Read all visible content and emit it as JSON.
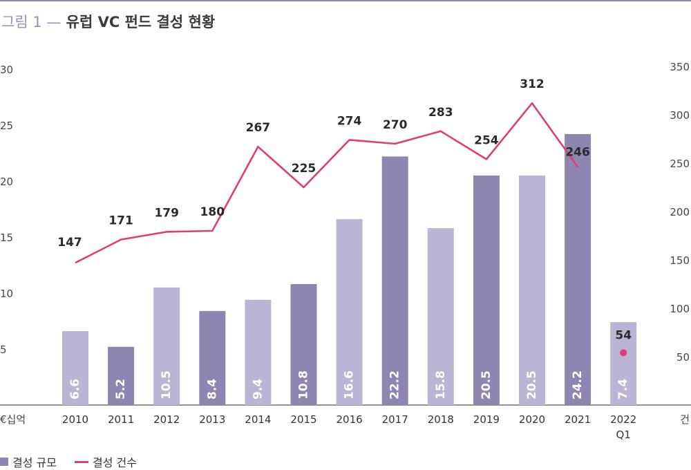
{
  "title": {
    "lead": "그림 1 —",
    "main": "유럽 VC 펀드 결성 현황"
  },
  "colors": {
    "bar_light": "#bcb4d4",
    "bar_dark": "#8e85b0",
    "line": "#e13c74",
    "rule": "#8e85b0"
  },
  "chart_data": {
    "type": "bar",
    "categories": [
      "2010",
      "2011",
      "2012",
      "2013",
      "2014",
      "2015",
      "2016",
      "2017",
      "2018",
      "2019",
      "2020",
      "2021",
      "2022\nQ1"
    ],
    "series": [
      {
        "name": "결성 규모",
        "type": "bar",
        "axis": "left",
        "values": [
          6.6,
          5.2,
          10.5,
          8.4,
          9.4,
          10.8,
          16.6,
          22.2,
          15.8,
          20.5,
          20.5,
          24.2,
          7.4
        ],
        "data_labels": [
          "6.6",
          "5.2",
          "10.5",
          "8.4",
          "9.4",
          "10.8",
          "16.6",
          "22.2",
          "15.8",
          "20.5",
          "20.5",
          "24.2",
          "7.4"
        ],
        "shade": [
          "light",
          "dark",
          "light",
          "dark",
          "light",
          "dark",
          "light",
          "dark",
          "light",
          "dark",
          "light",
          "dark",
          "light"
        ]
      },
      {
        "name": "결성 건수",
        "type": "line",
        "axis": "right",
        "values": [
          147,
          171,
          179,
          180,
          267,
          225,
          274,
          270,
          283,
          254,
          312,
          246,
          54
        ],
        "data_labels": [
          "147",
          "171",
          "179",
          "180",
          "267",
          "225",
          "274",
          "270",
          "283",
          "254",
          "312",
          "246",
          "54"
        ],
        "line_through": 12
      }
    ],
    "y_left": {
      "unit_label": "€십억",
      "ticks": [
        "30",
        "25",
        "20",
        "15",
        "10",
        "5"
      ],
      "tick_values": [
        30,
        25,
        20,
        15,
        10,
        5
      ],
      "ylim": [
        0,
        30
      ]
    },
    "y_right": {
      "unit_label": "건",
      "ticks": [
        "350",
        "300",
        "250",
        "200",
        "150",
        "100",
        "50"
      ],
      "tick_values": [
        350,
        300,
        250,
        200,
        150,
        100,
        50
      ],
      "ylim": [
        0,
        350
      ]
    },
    "grid": false,
    "legend_position": "bottom-left"
  }
}
